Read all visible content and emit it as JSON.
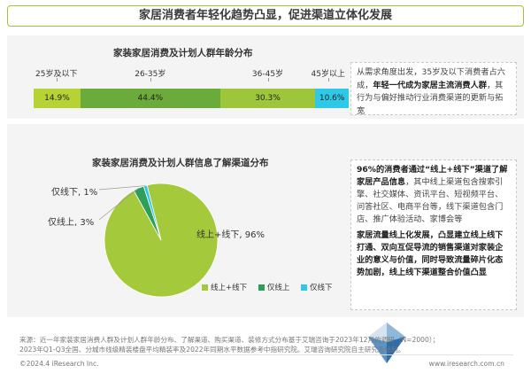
{
  "header": {
    "title": "家居消费者年轻化趋势凸显，促进渠道立体化发展"
  },
  "colors": {
    "accent": "#9dc63a",
    "dark_green": "#6aab3c",
    "light_green": "#b5d334",
    "cyan": "#2ec8e8",
    "light_blue": "#8fd3f0"
  },
  "chart_data": [
    {
      "type": "bar",
      "orientation": "horizontal-stacked",
      "title": "家装家居消费及计划人群年龄分布",
      "categories": [
        "25岁及以下",
        "26-35岁",
        "36-45岁",
        "45岁以上"
      ],
      "values": [
        14.9,
        44.4,
        30.3,
        10.6
      ],
      "value_labels": [
        "14.9%",
        "44.4%",
        "30.3%",
        "10.6%"
      ],
      "colors": [
        "#b5d334",
        "#6aab3c",
        "#9dc63a",
        "#2ec8e8"
      ]
    },
    {
      "type": "pie",
      "title": "家装家居消费及计划人群信息了解渠道分布",
      "categories": [
        "线上+线下",
        "仅线上",
        "仅线下"
      ],
      "values": [
        96,
        3,
        1
      ],
      "slice_labels": [
        "线上+线下, 96%",
        "仅线上, 3%",
        "仅线下, 1%"
      ],
      "colors": [
        "#a4c93a",
        "#2e9e5b",
        "#2ec8e8"
      ],
      "legend_position": "bottom"
    }
  ],
  "notes": {
    "top": {
      "plain1": "从需求角度出发，35岁及以下消费者占六成，",
      "bold1": "年轻一代成为家居主流消费人群",
      "plain2": "，其行为与偏好推动行业消费渠道的更新与拓宽"
    },
    "bottom": {
      "bold1": "96%的消费者通过“线上+线下”渠道了解家居产品信息",
      "plain1": "，其中线上渠道包含搜索引擎、社交媒体、资讯平台、短视频平台、问答社区、电商平台等，线下渠道包含门店、推广体验活动、家博会等",
      "bold2": "家居流量线上化发展，凸显建立线上线下打通、双向互促导流的销售渠道对家装企业的意义与价值，同时导致流量碎片化态势加剧，线上线下渠道整合价值凸显"
    }
  },
  "footer": {
    "source_line1": "来源：近一年家装家居消费人群及计划人群年龄分布、了解渠道、购买渠道、装修方式分布基于艾瑞咨询于2023年12月的调研（N=2000）；",
    "source_line2": "2023年Q1-Q3全国、分城市线级精装楼盘平均精装率及2022年同期水平数据参考中指研究院。艾瑞咨询研究院自主研究及绘制。",
    "copyright": "©2024.4 iResearch Inc.",
    "website": "www.iresearch.com.cn"
  }
}
